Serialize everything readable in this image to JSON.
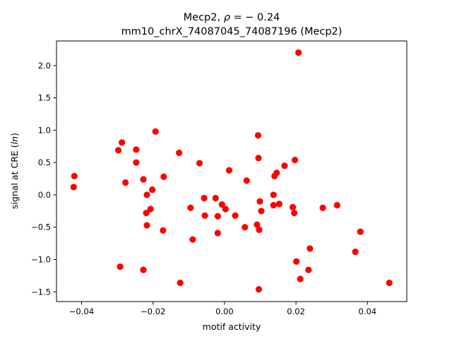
{
  "chart_data": {
    "type": "scatter",
    "title_line1": "Mecp2, ",
    "title_rho": "ρ",
    "title_eq": " = − 0.24",
    "title_line2": "mm10_chrX_74087045_74087196 (Mecp2)",
    "xlabel": "motif activity",
    "ylabel_pre": "signal at CRE (",
    "ylabel_ital": "ln",
    "ylabel_post": ")",
    "xlim": [
      -0.047,
      0.051
    ],
    "ylim": [
      -1.65,
      2.38
    ],
    "xticks": [
      -0.04,
      -0.02,
      0.0,
      0.02,
      0.04
    ],
    "xtick_labels": [
      "−0.04",
      "−0.02",
      "0.00",
      "0.02",
      "0.04"
    ],
    "yticks": [
      -1.5,
      -1.0,
      -0.5,
      0.0,
      0.5,
      1.0,
      1.5,
      2.0
    ],
    "ytick_labels": [
      "−1.5",
      "−1.0",
      "−0.5",
      "0.0",
      "0.5",
      "1.0",
      "1.5",
      "2.0"
    ],
    "grid": false,
    "marker_color": "#ff0000",
    "points": [
      {
        "x": -0.0422,
        "y": 0.12
      },
      {
        "x": -0.042,
        "y": 0.29
      },
      {
        "x": -0.0297,
        "y": 0.69
      },
      {
        "x": -0.0287,
        "y": 0.81
      },
      {
        "x": -0.0292,
        "y": -1.11
      },
      {
        "x": -0.0277,
        "y": 0.19
      },
      {
        "x": -0.0247,
        "y": 0.7
      },
      {
        "x": -0.0247,
        "y": 0.5
      },
      {
        "x": -0.0227,
        "y": 0.24
      },
      {
        "x": -0.0227,
        "y": -1.16
      },
      {
        "x": -0.0217,
        "y": 0.0
      },
      {
        "x": -0.0219,
        "y": -0.28
      },
      {
        "x": -0.0217,
        "y": -0.47
      },
      {
        "x": -0.0207,
        "y": -0.22
      },
      {
        "x": -0.0202,
        "y": 0.08
      },
      {
        "x": -0.0193,
        "y": 0.98
      },
      {
        "x": -0.017,
        "y": 0.28
      },
      {
        "x": -0.0172,
        "y": -0.55
      },
      {
        "x": -0.0127,
        "y": 0.65
      },
      {
        "x": -0.0124,
        "y": -1.36
      },
      {
        "x": -0.0095,
        "y": -0.2
      },
      {
        "x": -0.0089,
        "y": -0.69
      },
      {
        "x": -0.007,
        "y": 0.49
      },
      {
        "x": -0.0057,
        "y": -0.05
      },
      {
        "x": -0.0055,
        "y": -0.32
      },
      {
        "x": -0.0025,
        "y": -0.05
      },
      {
        "x": -0.0019,
        "y": -0.33
      },
      {
        "x": -0.0019,
        "y": -0.59
      },
      {
        "x": -0.0007,
        "y": -0.15
      },
      {
        "x": 0.0003,
        "y": -0.22
      },
      {
        "x": 0.0013,
        "y": 0.38
      },
      {
        "x": 0.003,
        "y": -0.32
      },
      {
        "x": 0.0057,
        "y": -0.5
      },
      {
        "x": 0.0062,
        "y": 0.22
      },
      {
        "x": 0.0091,
        "y": -0.46
      },
      {
        "x": 0.0094,
        "y": 0.92
      },
      {
        "x": 0.0095,
        "y": 0.57
      },
      {
        "x": 0.0097,
        "y": -0.54
      },
      {
        "x": 0.0099,
        "y": -0.1
      },
      {
        "x": 0.0103,
        "y": -0.25
      },
      {
        "x": 0.0096,
        "y": -1.46
      },
      {
        "x": 0.0137,
        "y": 0.0
      },
      {
        "x": 0.0137,
        "y": -0.16
      },
      {
        "x": 0.014,
        "y": 0.29
      },
      {
        "x": 0.0146,
        "y": 0.34
      },
      {
        "x": 0.0153,
        "y": -0.14
      },
      {
        "x": 0.0168,
        "y": 0.45
      },
      {
        "x": 0.0191,
        "y": -0.19
      },
      {
        "x": 0.0195,
        "y": -0.28
      },
      {
        "x": 0.0197,
        "y": 0.54
      },
      {
        "x": 0.0201,
        "y": -1.03
      },
      {
        "x": 0.0207,
        "y": 2.2
      },
      {
        "x": 0.0212,
        "y": -1.3
      },
      {
        "x": 0.0235,
        "y": -1.16
      },
      {
        "x": 0.0239,
        "y": -0.83
      },
      {
        "x": 0.0275,
        "y": -0.2
      },
      {
        "x": 0.0315,
        "y": -0.16
      },
      {
        "x": 0.0366,
        "y": -0.88
      },
      {
        "x": 0.038,
        "y": -0.57
      },
      {
        "x": 0.0461,
        "y": -1.36
      }
    ]
  }
}
